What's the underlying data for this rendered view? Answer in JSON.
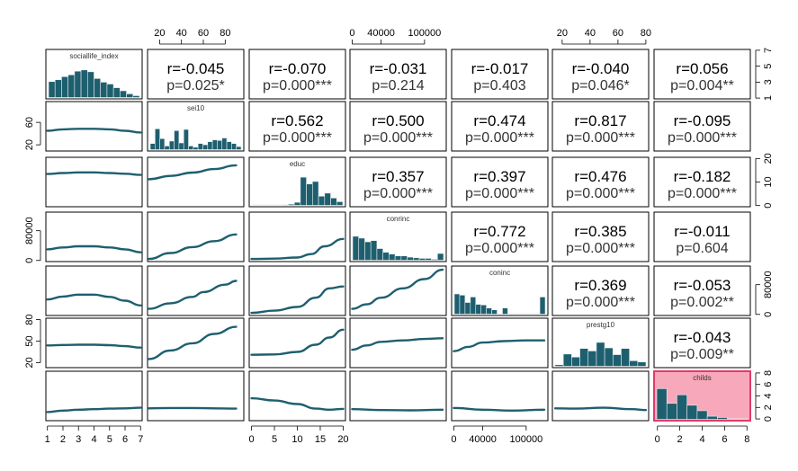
{
  "chart_data": {
    "type": "scatter",
    "title": "",
    "variables": [
      "sociallife_index",
      "sei10",
      "educ",
      "conrinc",
      "coninc",
      "prestg10",
      "childs"
    ],
    "highlight_variable": "childs",
    "colors": {
      "series": "#1e5f6f",
      "highlight_fill": "#f7a8bb",
      "highlight_border": "#e23b6a"
    },
    "axes": {
      "bottom": [
        {
          "column": 0,
          "ticks": [
            "1",
            "2",
            "3",
            "4",
            "5",
            "6",
            "7"
          ],
          "range": [
            0.9,
            7.1
          ]
        },
        {
          "column": 2,
          "ticks": [
            "0",
            "5",
            "10",
            "15",
            "20"
          ],
          "range": [
            -0.5,
            20.5
          ]
        },
        {
          "column": 4,
          "ticks": [
            "0",
            "40000",
            "100000"
          ],
          "range": [
            -3000,
            130000
          ]
        },
        {
          "column": 6,
          "ticks": [
            "0",
            "2",
            "4",
            "6",
            "8"
          ],
          "range": [
            -0.3,
            8.3
          ]
        }
      ],
      "top": [
        {
          "column": 1,
          "ticks": [
            "20",
            "40",
            "60",
            "80"
          ],
          "range": [
            9,
            97
          ]
        },
        {
          "column": 3,
          "ticks": [
            "0",
            "40000",
            "100000"
          ],
          "range": [
            -3000,
            130000
          ]
        },
        {
          "column": 5,
          "ticks": [
            "20",
            "40",
            "60",
            "80"
          ],
          "range": [
            13,
            82
          ]
        }
      ],
      "left": [
        {
          "row": 1,
          "ticks": [
            "20",
            "60"
          ],
          "range": [
            9,
            97
          ]
        },
        {
          "row": 3,
          "ticks": [
            "0",
            "80000"
          ],
          "range": [
            -3000,
            130000
          ]
        },
        {
          "row": 5,
          "ticks": [
            "20",
            "50",
            "80"
          ],
          "range": [
            13,
            82
          ]
        }
      ],
      "right": [
        {
          "row": 0,
          "ticks": [
            "1",
            "3",
            "5",
            "7"
          ],
          "range": [
            0.9,
            7.1
          ]
        },
        {
          "row": 2,
          "ticks": [
            "0",
            "10",
            "20"
          ],
          "range": [
            -0.5,
            20.5
          ]
        },
        {
          "row": 4,
          "ticks": [
            "0",
            "80000"
          ],
          "range": [
            -3000,
            130000
          ]
        },
        {
          "row": 6,
          "ticks": [
            "0",
            "2",
            "4",
            "6",
            "8"
          ],
          "range": [
            -0.3,
            8.3
          ]
        }
      ]
    },
    "histograms": [
      {
        "variable": "sociallife_index",
        "heights": [
          0.52,
          0.58,
          0.68,
          0.74,
          0.86,
          0.9,
          0.84,
          0.62,
          0.5,
          0.44,
          0.32,
          0.22,
          0.12,
          0.06
        ]
      },
      {
        "variable": "sei10",
        "heights": [
          0.2,
          0.68,
          0.36,
          0.12,
          0.28,
          0.62,
          0.22,
          0.66,
          0.12,
          0.08,
          0.2,
          0.16,
          0.26,
          0.32,
          0.3,
          0.38,
          0.26,
          0.2,
          0.1
        ]
      },
      {
        "variable": "educ",
        "heights": [
          0.01,
          0.01,
          0.01,
          0.01,
          0.01,
          0.02,
          0.04,
          0.1,
          0.92,
          0.7,
          0.78,
          0.3,
          0.4,
          0.24,
          0.12
        ]
      },
      {
        "variable": "conrinc",
        "heights": [
          0.78,
          0.72,
          0.6,
          0.64,
          0.38,
          0.26,
          0.2,
          0.14,
          0.14,
          0.1,
          0.08,
          0.06,
          0.06,
          0.03,
          0.22
        ]
      },
      {
        "variable": "coninc",
        "heights": [
          0.66,
          0.62,
          0.38,
          0.56,
          0.32,
          0.3,
          0.2,
          0.14,
          0.0,
          0.2,
          0.0,
          0.0,
          0.0,
          0.0,
          0.0,
          0.0,
          0.56
        ]
      },
      {
        "variable": "prestg10",
        "heights": [
          0.05,
          0.4,
          0.3,
          0.58,
          0.5,
          0.78,
          0.6,
          0.38,
          0.58,
          0.18,
          0.14
        ]
      },
      {
        "variable": "childs",
        "heights": [
          1.0,
          0.52,
          0.8,
          0.46,
          0.28,
          0.1,
          0.06,
          0.02,
          0.02
        ]
      }
    ],
    "smoothers": [
      {
        "x_var": "sociallife_index",
        "y_var": "sei10",
        "points": [
          [
            1,
            45
          ],
          [
            2,
            47.5
          ],
          [
            3,
            48.5
          ],
          [
            4,
            48.5
          ],
          [
            5,
            47.5
          ],
          [
            6,
            45
          ],
          [
            7,
            42
          ]
        ]
      },
      {
        "x_var": "sociallife_index",
        "y_var": "educ",
        "points": [
          [
            1,
            13.4
          ],
          [
            2,
            13.8
          ],
          [
            3,
            14.1
          ],
          [
            4,
            14.1
          ],
          [
            5,
            13.8
          ],
          [
            6,
            13.5
          ],
          [
            7,
            13.0
          ]
        ]
      },
      {
        "x_var": "sociallife_index",
        "y_var": "conrinc",
        "points": [
          [
            1,
            30000
          ],
          [
            2,
            35000
          ],
          [
            3,
            38000
          ],
          [
            4,
            38000
          ],
          [
            5,
            35000
          ],
          [
            6,
            30000
          ],
          [
            7,
            22000
          ]
        ]
      },
      {
        "x_var": "sociallife_index",
        "y_var": "coninc",
        "points": [
          [
            1,
            40000
          ],
          [
            2,
            48000
          ],
          [
            3,
            53000
          ],
          [
            4,
            53000
          ],
          [
            5,
            47000
          ],
          [
            6,
            37000
          ],
          [
            7,
            24000
          ]
        ]
      },
      {
        "x_var": "sociallife_index",
        "y_var": "prestg10",
        "points": [
          [
            1,
            44
          ],
          [
            2,
            44.6
          ],
          [
            3,
            45
          ],
          [
            4,
            45
          ],
          [
            5,
            44.4
          ],
          [
            6,
            43
          ],
          [
            7,
            41
          ]
        ]
      },
      {
        "x_var": "sociallife_index",
        "y_var": "childs",
        "points": [
          [
            1,
            1.2
          ],
          [
            2,
            1.45
          ],
          [
            3,
            1.6
          ],
          [
            4,
            1.7
          ],
          [
            5,
            1.8
          ],
          [
            6,
            1.85
          ],
          [
            7,
            1.95
          ]
        ]
      },
      {
        "x_var": "sei10",
        "y_var": "educ",
        "points": [
          [
            10,
            11.2
          ],
          [
            30,
            12.6
          ],
          [
            50,
            14.0
          ],
          [
            70,
            15.5
          ],
          [
            90,
            17.1
          ]
        ]
      },
      {
        "x_var": "sei10",
        "y_var": "conrinc",
        "points": [
          [
            10,
            4000
          ],
          [
            30,
            20000
          ],
          [
            50,
            36000
          ],
          [
            70,
            52000
          ],
          [
            90,
            70000
          ]
        ]
      },
      {
        "x_var": "sei10",
        "y_var": "coninc",
        "points": [
          [
            10,
            15000
          ],
          [
            30,
            30000
          ],
          [
            50,
            47000
          ],
          [
            60,
            60000
          ],
          [
            80,
            80000
          ],
          [
            90,
            90000
          ]
        ]
      },
      {
        "x_var": "sei10",
        "y_var": "prestg10",
        "points": [
          [
            10,
            25
          ],
          [
            30,
            37
          ],
          [
            50,
            47
          ],
          [
            70,
            60
          ],
          [
            90,
            70
          ]
        ]
      },
      {
        "x_var": "sei10",
        "y_var": "childs",
        "points": [
          [
            10,
            1.85
          ],
          [
            30,
            1.9
          ],
          [
            50,
            1.9
          ],
          [
            70,
            1.85
          ],
          [
            90,
            1.8
          ]
        ]
      },
      {
        "x_var": "educ",
        "y_var": "conrinc",
        "points": [
          [
            0,
            4000
          ],
          [
            5,
            5000
          ],
          [
            10,
            8000
          ],
          [
            13,
            17000
          ],
          [
            16,
            38000
          ],
          [
            20,
            58000
          ]
        ]
      },
      {
        "x_var": "educ",
        "y_var": "coninc",
        "points": [
          [
            0,
            4000
          ],
          [
            5,
            10000
          ],
          [
            10,
            20000
          ],
          [
            14,
            45000
          ],
          [
            17,
            70000
          ],
          [
            20,
            75000
          ]
        ]
      },
      {
        "x_var": "educ",
        "y_var": "prestg10",
        "points": [
          [
            0,
            31
          ],
          [
            5,
            31.5
          ],
          [
            10,
            35
          ],
          [
            14,
            45
          ],
          [
            17,
            55
          ],
          [
            20,
            66
          ]
        ]
      },
      {
        "x_var": "educ",
        "y_var": "childs",
        "points": [
          [
            0,
            3.6
          ],
          [
            5,
            3.2
          ],
          [
            10,
            2.6
          ],
          [
            14,
            1.8
          ],
          [
            17,
            1.6
          ],
          [
            20,
            1.75
          ]
        ]
      },
      {
        "x_var": "conrinc",
        "y_var": "coninc",
        "points": [
          [
            0,
            15000
          ],
          [
            20000,
            27000
          ],
          [
            40000,
            45000
          ],
          [
            70000,
            70000
          ],
          [
            100000,
            95000
          ],
          [
            125000,
            120000
          ]
        ]
      },
      {
        "x_var": "conrinc",
        "y_var": "prestg10",
        "points": [
          [
            0,
            38
          ],
          [
            20000,
            44
          ],
          [
            40000,
            49
          ],
          [
            70000,
            51
          ],
          [
            100000,
            53
          ],
          [
            125000,
            54
          ]
        ]
      },
      {
        "x_var": "conrinc",
        "y_var": "childs",
        "points": [
          [
            0,
            1.7
          ],
          [
            40000,
            1.55
          ],
          [
            80000,
            1.5
          ],
          [
            125000,
            1.6
          ]
        ]
      },
      {
        "x_var": "coninc",
        "y_var": "prestg10",
        "points": [
          [
            0,
            36
          ],
          [
            20000,
            42
          ],
          [
            40000,
            48
          ],
          [
            70000,
            50
          ],
          [
            100000,
            51
          ],
          [
            125000,
            51
          ]
        ]
      },
      {
        "x_var": "coninc",
        "y_var": "childs",
        "points": [
          [
            0,
            1.9
          ],
          [
            40000,
            1.6
          ],
          [
            80000,
            1.45
          ],
          [
            125000,
            1.6
          ]
        ]
      },
      {
        "x_var": "prestg10",
        "y_var": "childs",
        "points": [
          [
            15,
            1.85
          ],
          [
            30,
            1.8
          ],
          [
            50,
            1.95
          ],
          [
            70,
            1.7
          ],
          [
            80,
            1.55
          ]
        ]
      }
    ],
    "correlations": [
      {
        "x_var": "sei10",
        "y_var": "sociallife_index",
        "r": "r=-0.045",
        "p": "p=0.025*"
      },
      {
        "x_var": "educ",
        "y_var": "sociallife_index",
        "r": "r=-0.070",
        "p": "p=0.000***"
      },
      {
        "x_var": "conrinc",
        "y_var": "sociallife_index",
        "r": "r=-0.031",
        "p": "p=0.214"
      },
      {
        "x_var": "coninc",
        "y_var": "sociallife_index",
        "r": "r=-0.017",
        "p": "p=0.403"
      },
      {
        "x_var": "prestg10",
        "y_var": "sociallife_index",
        "r": "r=-0.040",
        "p": "p=0.046*"
      },
      {
        "x_var": "childs",
        "y_var": "sociallife_index",
        "r": "r=0.056",
        "p": "p=0.004**"
      },
      {
        "x_var": "educ",
        "y_var": "sei10",
        "r": "r=0.562",
        "p": "p=0.000***"
      },
      {
        "x_var": "conrinc",
        "y_var": "sei10",
        "r": "r=0.500",
        "p": "p=0.000***"
      },
      {
        "x_var": "coninc",
        "y_var": "sei10",
        "r": "r=0.474",
        "p": "p=0.000***"
      },
      {
        "x_var": "prestg10",
        "y_var": "sei10",
        "r": "r=0.817",
        "p": "p=0.000***"
      },
      {
        "x_var": "childs",
        "y_var": "sei10",
        "r": "r=-0.095",
        "p": "p=0.000***"
      },
      {
        "x_var": "conrinc",
        "y_var": "educ",
        "r": "r=0.357",
        "p": "p=0.000***"
      },
      {
        "x_var": "coninc",
        "y_var": "educ",
        "r": "r=0.397",
        "p": "p=0.000***"
      },
      {
        "x_var": "prestg10",
        "y_var": "educ",
        "r": "r=0.476",
        "p": "p=0.000***"
      },
      {
        "x_var": "childs",
        "y_var": "educ",
        "r": "r=-0.182",
        "p": "p=0.000***"
      },
      {
        "x_var": "coninc",
        "y_var": "conrinc",
        "r": "r=0.772",
        "p": "p=0.000***"
      },
      {
        "x_var": "prestg10",
        "y_var": "conrinc",
        "r": "r=0.385",
        "p": "p=0.000***"
      },
      {
        "x_var": "childs",
        "y_var": "conrinc",
        "r": "r=-0.011",
        "p": "p=0.604"
      },
      {
        "x_var": "prestg10",
        "y_var": "coninc",
        "r": "r=0.369",
        "p": "p=0.000***"
      },
      {
        "x_var": "childs",
        "y_var": "coninc",
        "r": "r=-0.053",
        "p": "p=0.002**"
      },
      {
        "x_var": "childs",
        "y_var": "prestg10",
        "r": "r=-0.043",
        "p": "p=0.009**"
      }
    ]
  }
}
